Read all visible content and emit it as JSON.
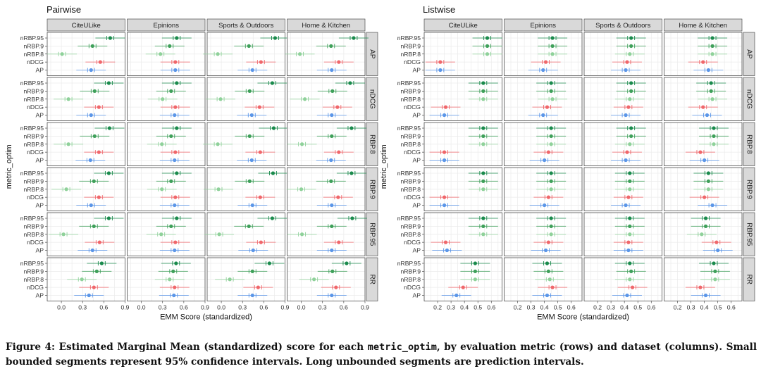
{
  "colors": {
    "nRBP.95": "#1a8a4c",
    "nRBP.9": "#3fa05a",
    "nRBP.8": "#8fd19a",
    "nDCG": "#f0676b",
    "AP": "#5b96e8",
    "strip_bg": "#d9d9d9",
    "grid": "#ebebeb"
  },
  "chart_data": [
    {
      "type": "forest",
      "title": "Pairwise",
      "xlabel": "EMM Score (standardized)",
      "ylabel": "metric_optim",
      "xlim": [
        -0.2,
        0.9
      ],
      "xticks": [
        "0.0",
        "0.3",
        "0.6",
        "0.9"
      ],
      "xtick_values": [
        0.0,
        0.3,
        0.6,
        0.9
      ],
      "columns": [
        "CiteULike",
        "Epinions",
        "Sports & Outdoors",
        "Home & Kitchen"
      ],
      "rows": [
        "AP",
        "nDCG",
        "RBP.8",
        "RBP.9",
        "RBP.95",
        "RR"
      ],
      "series_labels": [
        "nRBP.95",
        "nRBP.9",
        "nRBP.8",
        "nDCG",
        "AP"
      ],
      "values": [
        [
          [
            0.69,
            0.44,
            0.01,
            0.55,
            0.42
          ],
          [
            0.5,
            0.4,
            0.27,
            0.48,
            0.48
          ],
          [
            0.76,
            0.39,
            -0.05,
            0.56,
            0.44
          ],
          [
            0.74,
            0.42,
            -0.02,
            0.53,
            0.43
          ]
        ],
        [
          [
            0.67,
            0.47,
            0.1,
            0.53,
            0.42
          ],
          [
            0.5,
            0.42,
            0.3,
            0.48,
            0.47
          ],
          [
            0.72,
            0.4,
            -0.01,
            0.54,
            0.43
          ],
          [
            0.69,
            0.44,
            0.05,
            0.51,
            0.43
          ]
        ],
        [
          [
            0.68,
            0.47,
            0.1,
            0.53,
            0.41
          ],
          [
            0.5,
            0.42,
            0.29,
            0.48,
            0.47
          ],
          [
            0.74,
            0.4,
            -0.05,
            0.55,
            0.43
          ],
          [
            0.71,
            0.43,
            0.01,
            0.53,
            0.42
          ]
        ],
        [
          [
            0.67,
            0.46,
            0.07,
            0.53,
            0.42
          ],
          [
            0.5,
            0.42,
            0.29,
            0.48,
            0.47
          ],
          [
            0.73,
            0.4,
            -0.04,
            0.55,
            0.44
          ],
          [
            0.71,
            0.42,
            0.0,
            0.52,
            0.43
          ]
        ],
        [
          [
            0.67,
            0.46,
            0.03,
            0.54,
            0.44
          ],
          [
            0.5,
            0.42,
            0.28,
            0.48,
            0.47
          ],
          [
            0.72,
            0.39,
            -0.03,
            0.56,
            0.45
          ],
          [
            0.72,
            0.43,
            0.01,
            0.53,
            0.43
          ]
        ],
        [
          [
            0.57,
            0.5,
            0.29,
            0.46,
            0.39
          ],
          [
            0.49,
            0.45,
            0.4,
            0.47,
            0.46
          ],
          [
            0.68,
            0.44,
            0.12,
            0.52,
            0.44
          ],
          [
            0.64,
            0.44,
            0.18,
            0.49,
            0.43
          ]
        ]
      ]
    },
    {
      "type": "forest",
      "title": "Listwise",
      "xlabel": "EMM Score (standardized)",
      "ylabel": "metric_optim",
      "xlim": [
        0.1,
        0.68
      ],
      "xticks": [
        "0.2",
        "0.3",
        "0.4",
        "0.5",
        "0.6"
      ],
      "xtick_values": [
        0.2,
        0.3,
        0.4,
        0.5,
        0.6
      ],
      "columns": [
        "CiteULike",
        "Epinions",
        "Sports & Outdoors",
        "Home & Kitchen"
      ],
      "rows": [
        "AP",
        "nDCG",
        "RBP.8",
        "RBP.9",
        "RBP.95",
        "RR"
      ],
      "series_labels": [
        "nRBP.95",
        "nRBP.9",
        "nRBP.8",
        "nDCG",
        "AP"
      ],
      "values": [
        [
          [
            0.57,
            0.57,
            0.57,
            0.22,
            0.22
          ],
          [
            0.46,
            0.46,
            0.46,
            0.41,
            0.39
          ],
          [
            0.45,
            0.45,
            0.44,
            0.42,
            0.41
          ],
          [
            0.46,
            0.46,
            0.46,
            0.39,
            0.43
          ]
        ],
        [
          [
            0.54,
            0.54,
            0.54,
            0.26,
            0.25
          ],
          [
            0.45,
            0.45,
            0.46,
            0.42,
            0.39
          ],
          [
            0.45,
            0.45,
            0.44,
            0.43,
            0.41
          ],
          [
            0.45,
            0.45,
            0.46,
            0.39,
            0.42
          ]
        ],
        [
          [
            0.54,
            0.54,
            0.54,
            0.25,
            0.25
          ],
          [
            0.45,
            0.45,
            0.45,
            0.43,
            0.4
          ],
          [
            0.45,
            0.45,
            0.44,
            0.42,
            0.41
          ],
          [
            0.47,
            0.47,
            0.47,
            0.37,
            0.4
          ]
        ],
        [
          [
            0.54,
            0.54,
            0.54,
            0.25,
            0.25
          ],
          [
            0.45,
            0.45,
            0.45,
            0.43,
            0.4
          ],
          [
            0.44,
            0.44,
            0.44,
            0.43,
            0.41
          ],
          [
            0.43,
            0.43,
            0.43,
            0.4,
            0.46
          ]
        ],
        [
          [
            0.54,
            0.54,
            0.54,
            0.26,
            0.27
          ],
          [
            0.45,
            0.45,
            0.45,
            0.43,
            0.41
          ],
          [
            0.44,
            0.44,
            0.44,
            0.43,
            0.43
          ],
          [
            0.41,
            0.41,
            0.38,
            0.49,
            0.5
          ]
        ],
        [
          [
            0.48,
            0.48,
            0.48,
            0.39,
            0.34
          ],
          [
            0.42,
            0.43,
            0.44,
            0.46,
            0.42
          ],
          [
            0.44,
            0.45,
            0.44,
            0.46,
            0.42
          ],
          [
            0.47,
            0.48,
            0.48,
            0.37,
            0.41
          ]
        ]
      ]
    }
  ],
  "caption": {
    "prefix": "Figure 4: Estimated Marginal Mean (standardized) score for each ",
    "code": "metric_optim",
    "suffix": ", by evaluation metric (rows) and dataset (columns). Small bounded segments represent 95% confidence intervals. Long unbounded segments are prediction intervals."
  }
}
